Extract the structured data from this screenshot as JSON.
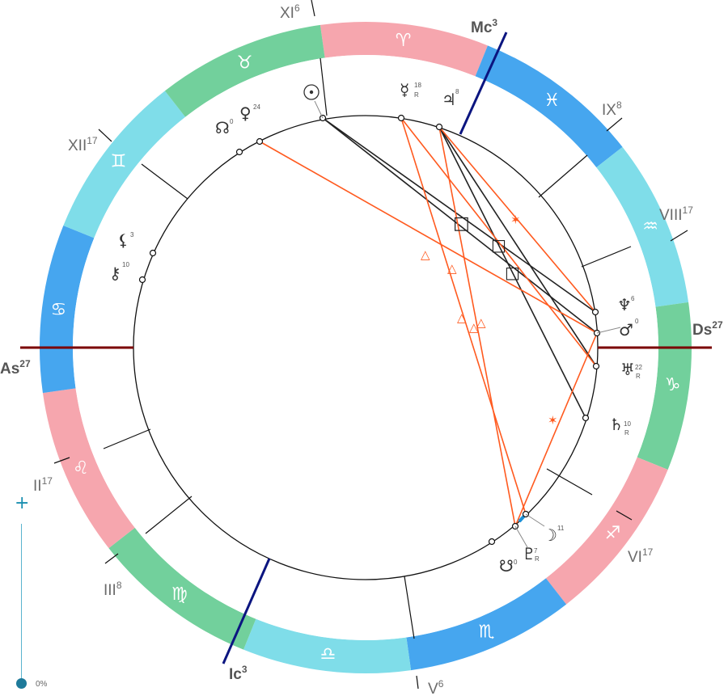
{
  "colors": {
    "fire": "#f6a6ae",
    "earth": "#72d09c",
    "air": "#7fdde9",
    "water": "#46a6ef",
    "aspect_hard": "#222222",
    "aspect_soft": "#ff5a1f",
    "axis_asc": "#7b0000",
    "axis_mc": "#0b1580"
  },
  "zodiac": [
    {
      "name": "aries",
      "glyph": "♈",
      "element": "fire"
    },
    {
      "name": "pisces",
      "glyph": "♓",
      "element": "water"
    },
    {
      "name": "aquarius",
      "glyph": "♒",
      "element": "air"
    },
    {
      "name": "capricorn",
      "glyph": "♑",
      "element": "earth"
    },
    {
      "name": "sagittarius",
      "glyph": "♐",
      "element": "fire"
    },
    {
      "name": "scorpio",
      "glyph": "♏",
      "element": "water"
    },
    {
      "name": "libra",
      "glyph": "♎",
      "element": "air"
    },
    {
      "name": "virgo",
      "glyph": "♍",
      "element": "earth"
    },
    {
      "name": "leo",
      "glyph": "♌",
      "element": "fire"
    },
    {
      "name": "cancer",
      "glyph": "♋",
      "element": "water"
    },
    {
      "name": "gemini",
      "glyph": "♊",
      "element": "air"
    },
    {
      "name": "taurus",
      "glyph": "♉",
      "element": "earth"
    }
  ],
  "axes": {
    "asc": {
      "label": "As",
      "degree": "27"
    },
    "dsc": {
      "label": "Ds",
      "degree": "27"
    },
    "mc": {
      "label": "Mc",
      "degree": "3"
    },
    "ic": {
      "label": "Ic",
      "degree": "3"
    }
  },
  "houses": [
    {
      "label": "XI",
      "degree": "6"
    },
    {
      "label": "IX",
      "degree": "8"
    },
    {
      "label": "VIII",
      "degree": "17"
    },
    {
      "label": "VI",
      "degree": "17"
    },
    {
      "label": "V",
      "degree": "6"
    },
    {
      "label": "III",
      "degree": "8"
    },
    {
      "label": "II",
      "degree": "17"
    },
    {
      "label": "XII",
      "degree": "17"
    }
  ],
  "planets": [
    {
      "name": "sun",
      "glyph": "☉",
      "degree": "",
      "retro": ""
    },
    {
      "name": "mercury",
      "glyph": "☿",
      "degree": "18",
      "retro": "R"
    },
    {
      "name": "jupiter",
      "glyph": "♃",
      "degree": "8",
      "retro": ""
    },
    {
      "name": "venus",
      "glyph": "♀",
      "degree": "24",
      "retro": ""
    },
    {
      "name": "north-node",
      "glyph": "☊",
      "degree": "0",
      "retro": ""
    },
    {
      "name": "lilith",
      "glyph": "⚸",
      "degree": "3",
      "retro": ""
    },
    {
      "name": "chiron",
      "glyph": "⚷",
      "degree": "10",
      "retro": ""
    },
    {
      "name": "neptune",
      "glyph": "♆",
      "degree": "6",
      "retro": ""
    },
    {
      "name": "mars",
      "glyph": "♂",
      "degree": "0",
      "retro": ""
    },
    {
      "name": "uranus",
      "glyph": "♅",
      "degree": "22",
      "retro": "R"
    },
    {
      "name": "saturn",
      "glyph": "♄",
      "degree": "10",
      "retro": "R"
    },
    {
      "name": "moon",
      "glyph": "☽",
      "degree": "11",
      "retro": ""
    },
    {
      "name": "pluto",
      "glyph": "♇",
      "degree": "7",
      "retro": "R"
    },
    {
      "name": "south-node",
      "glyph": "☋",
      "degree": "0",
      "retro": ""
    }
  ],
  "aspects": {
    "square_glyph": "□",
    "trine_glyph": "△",
    "sextile_glyph": "✶"
  },
  "zoom": {
    "plus": "+",
    "value": "0%"
  }
}
